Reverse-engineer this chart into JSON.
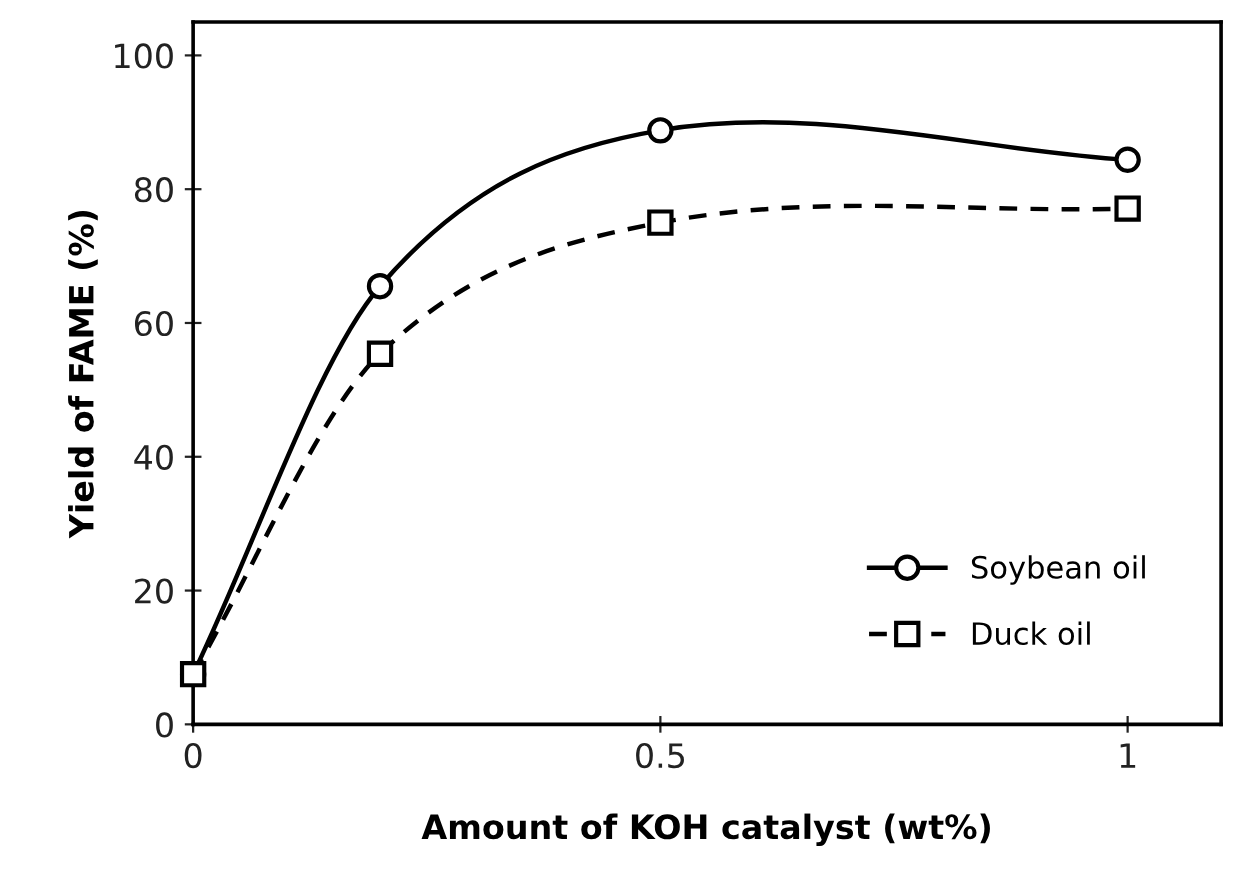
{
  "chart_data": {
    "type": "line",
    "xlabel": "Amount of KOH catalyst (wt%)",
    "ylabel": "Yield of FAME (%)",
    "x": [
      0,
      0.2,
      0.5,
      1
    ],
    "series": [
      {
        "name": "Soybean oil",
        "color": "#000000",
        "values": [
          7.5,
          65.5,
          88.8,
          84.4
        ],
        "marker": "circle",
        "line_style": "solid"
      },
      {
        "name": "Duck oil",
        "color": "#000000",
        "values": [
          7.5,
          55.4,
          75,
          77.1
        ],
        "marker": "square",
        "line_style": "dashed"
      }
    ],
    "xlim": [
      0,
      1.1
    ],
    "xticks": [
      0,
      0.5,
      1
    ],
    "ylim": [
      0,
      105
    ],
    "yticks": [
      0,
      20,
      40,
      60,
      80,
      100
    ],
    "grid": false,
    "legend": "bottom right"
  }
}
